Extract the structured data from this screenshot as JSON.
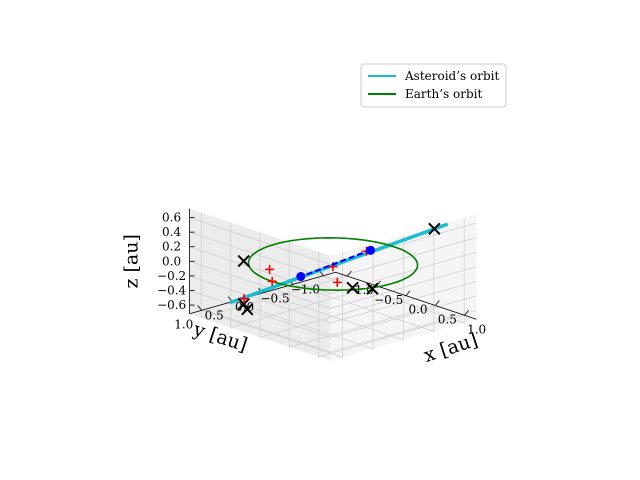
{
  "chart_data": {
    "type": "line",
    "projection": "3d",
    "title": "",
    "xlabel": "x [au]",
    "ylabel": "y [au]",
    "zlabel": "z [au]",
    "xlim": [
      -1.2,
      1.2
    ],
    "ylim": [
      -1.2,
      1.2
    ],
    "zlim": [
      -0.72,
      0.72
    ],
    "x_ticks": [
      "−1.0",
      "−0.5",
      "0.0",
      "0.5",
      "1.0"
    ],
    "y_ticks": [
      "−1.0",
      "−0.5",
      "0.0",
      "0.5",
      "1.0"
    ],
    "z_ticks": [
      "−0.6",
      "−0.4",
      "−0.2",
      "0.0",
      "0.2",
      "0.4",
      "0.6"
    ],
    "grid": true,
    "legend": {
      "position": "top-right",
      "entries": [
        {
          "label": "Asteroid’s orbit",
          "color": "#17becf"
        },
        {
          "label": "Earth’s orbit",
          "color": "#008000"
        }
      ]
    },
    "series": [
      {
        "name": "Asteroid’s orbit",
        "kind": "line",
        "color": "#17becf",
        "points": [
          [
            1.05,
            -0.85,
            0.62
          ],
          [
            -0.85,
            0.85,
            -0.55
          ]
        ]
      },
      {
        "name": "Earth’s orbit",
        "kind": "ellipse",
        "color": "#008000",
        "center": [
          0,
          0,
          0
        ],
        "radius": 1.0
      }
    ],
    "markers": [
      {
        "kind": "black-x",
        "points": [
          [
            0.95,
            -0.75,
            0.56
          ],
          [
            -0.62,
            0.87,
            0.08
          ],
          [
            0.91,
            0.23,
            -0.04
          ],
          [
            0.77,
            0.42,
            -0.02
          ],
          [
            -0.64,
            0.85,
            -0.52
          ],
          [
            -0.57,
            0.86,
            -0.57
          ]
        ]
      },
      {
        "kind": "red-plus",
        "points": [
          [
            0.25,
            -0.31,
            0.17
          ],
          [
            0.05,
            0.05,
            -0.01
          ],
          [
            -0.51,
            0.55,
            -0.08
          ],
          [
            0.0,
            1.0,
            0.0
          ],
          [
            0.54,
            0.45,
            0.0
          ],
          [
            -0.79,
            0.7,
            -0.52
          ]
        ]
      },
      {
        "kind": "blue-dot",
        "points": [
          [
            0.36,
            -0.27,
            0.22
          ],
          [
            -0.29,
            0.25,
            -0.19
          ]
        ]
      },
      {
        "kind": "blue-dash",
        "points": [
          [
            0.37,
            -0.27,
            0.23
          ],
          [
            -0.3,
            0.26,
            -0.2
          ]
        ]
      }
    ]
  }
}
